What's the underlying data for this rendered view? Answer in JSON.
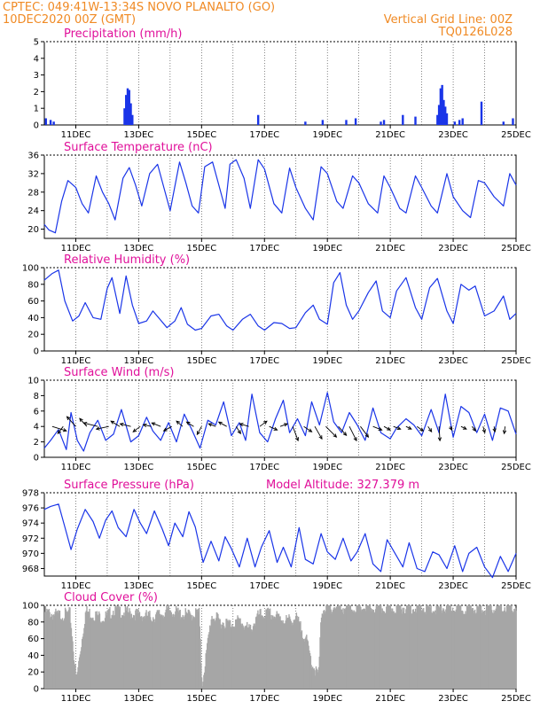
{
  "header": {
    "line1_left": "CPTEC:   049:41W-13:34S   NOVO PLANALTO (GO)",
    "line2_left": "10DEC2020 00Z (GMT)",
    "line2_right": "Vertical Grid Line: 00Z",
    "line3_right": "TQ0126L028"
  },
  "colors": {
    "header": "#f08a24",
    "title": "#e0109a",
    "series": "#1a35e8",
    "bars": "#1a35e8",
    "cloud": "#a6a6a6"
  },
  "xaxis": {
    "start_day": 10,
    "end_day": 25,
    "tick_labels": [
      "11DEC",
      "13DEC",
      "15DEC",
      "17DEC",
      "19DEC",
      "21DEC",
      "23DEC",
      "25DEC"
    ],
    "tick_days": [
      11,
      13,
      15,
      17,
      19,
      21,
      23,
      25
    ]
  },
  "chart_data": [
    {
      "id": "precip",
      "type": "bar",
      "title": "Precipitation (mm/h)",
      "ylim": [
        0,
        5
      ],
      "yticks": [
        "0",
        "1",
        "2",
        "3",
        "4",
        "5"
      ],
      "x": [
        10.05,
        10.2,
        10.3,
        12.55,
        12.6,
        12.65,
        12.7,
        12.75,
        12.8,
        16.8,
        18.3,
        18.85,
        19.6,
        19.9,
        20.7,
        20.8,
        21.4,
        21.8,
        22.5,
        22.55,
        22.6,
        22.65,
        22.7,
        22.75,
        22.8,
        23.05,
        23.2,
        23.3,
        23.9,
        24.6,
        24.9
      ],
      "values": [
        0.4,
        0.3,
        0.2,
        1.0,
        1.8,
        2.2,
        2.1,
        1.3,
        0.6,
        0.6,
        0.2,
        0.3,
        0.3,
        0.4,
        0.2,
        0.3,
        0.6,
        0.5,
        0.6,
        1.2,
        2.2,
        2.4,
        1.5,
        1.1,
        0.7,
        0.2,
        0.3,
        0.4,
        1.4,
        0.2,
        0.4
      ]
    },
    {
      "id": "temp",
      "type": "line",
      "title": "Surface Temperature (nC)",
      "ylim": [
        18,
        36
      ],
      "yticks": [
        "20",
        "24",
        "28",
        "32",
        "36"
      ],
      "x": [
        10.0,
        10.15,
        10.35,
        10.55,
        10.75,
        11.0,
        11.2,
        11.4,
        11.65,
        11.85,
        12.05,
        12.25,
        12.5,
        12.7,
        12.9,
        13.1,
        13.35,
        13.6,
        13.8,
        14.0,
        14.3,
        14.5,
        14.7,
        14.9,
        15.1,
        15.35,
        15.55,
        15.75,
        15.9,
        16.1,
        16.35,
        16.55,
        16.8,
        17.0,
        17.3,
        17.55,
        17.8,
        18.0,
        18.3,
        18.55,
        18.8,
        19.0,
        19.3,
        19.5,
        19.8,
        20.0,
        20.3,
        20.6,
        20.8,
        21.0,
        21.3,
        21.5,
        21.8,
        22.0,
        22.3,
        22.5,
        22.8,
        23.0,
        23.3,
        23.55,
        23.8,
        24.0,
        24.3,
        24.6,
        24.8,
        25.0
      ],
      "values": [
        21,
        19.8,
        19.2,
        26,
        30.5,
        29,
        25.5,
        23.5,
        31.5,
        28,
        25.5,
        22,
        31,
        33.3,
        29.5,
        25,
        32,
        34,
        29,
        24,
        34.5,
        30,
        25,
        23.5,
        33.5,
        34.5,
        29.5,
        24.5,
        34,
        35,
        31,
        24.5,
        35,
        33,
        25.5,
        23.5,
        33.2,
        29,
        24.5,
        22,
        33.5,
        32,
        26,
        24.5,
        31.5,
        30,
        25.5,
        23.5,
        31.5,
        29,
        24.5,
        23.5,
        31.5,
        29,
        25,
        23.5,
        32,
        27,
        24,
        22.5,
        30.5,
        30,
        27,
        25,
        32,
        29.5
      ]
    },
    {
      "id": "rh",
      "type": "line",
      "title": "Relative Humidity (%)",
      "ylim": [
        0,
        100
      ],
      "yticks": [
        "0",
        "20",
        "40",
        "60",
        "80",
        "100"
      ],
      "x": [
        10.0,
        10.25,
        10.45,
        10.65,
        10.9,
        11.1,
        11.3,
        11.55,
        11.8,
        12.0,
        12.15,
        12.4,
        12.6,
        12.8,
        13.0,
        13.25,
        13.45,
        13.65,
        13.9,
        14.15,
        14.35,
        14.55,
        14.8,
        15.0,
        15.3,
        15.55,
        15.8,
        16.0,
        16.3,
        16.55,
        16.8,
        17.0,
        17.3,
        17.55,
        17.8,
        18.0,
        18.3,
        18.55,
        18.75,
        19.0,
        19.2,
        19.4,
        19.6,
        19.8,
        20.0,
        20.3,
        20.55,
        20.75,
        21.0,
        21.2,
        21.5,
        21.8,
        22.0,
        22.25,
        22.5,
        22.8,
        23.0,
        23.25,
        23.5,
        23.7,
        24.0,
        24.3,
        24.6,
        24.8,
        25.0
      ],
      "values": [
        85,
        93,
        97,
        60,
        36,
        42,
        58,
        40,
        38,
        75,
        88,
        45,
        90,
        55,
        33,
        36,
        48,
        39,
        28,
        36,
        52,
        32,
        25,
        27,
        42,
        44,
        30,
        25,
        38,
        44,
        30,
        25,
        34,
        33,
        27,
        28,
        46,
        55,
        38,
        32,
        82,
        94,
        55,
        38,
        48,
        70,
        84,
        48,
        40,
        72,
        88,
        52,
        38,
        76,
        87,
        48,
        33,
        80,
        73,
        78,
        42,
        48,
        66,
        38,
        45
      ]
    },
    {
      "id": "wind",
      "type": "line",
      "title": "Surface Wind (m/s)",
      "ylim": [
        0,
        10
      ],
      "yticks": [
        "0",
        "2",
        "4",
        "6",
        "8",
        "10"
      ],
      "x": [
        10.0,
        10.2,
        10.45,
        10.7,
        10.85,
        11.05,
        11.25,
        11.45,
        11.7,
        11.95,
        12.2,
        12.45,
        12.75,
        13.0,
        13.25,
        13.45,
        13.7,
        13.95,
        14.2,
        14.45,
        14.7,
        14.95,
        15.2,
        15.45,
        15.7,
        15.95,
        16.2,
        16.4,
        16.6,
        16.85,
        17.1,
        17.35,
        17.6,
        17.8,
        18.05,
        18.3,
        18.5,
        18.75,
        19.0,
        19.2,
        19.45,
        19.7,
        19.95,
        20.2,
        20.45,
        20.7,
        21.0,
        21.2,
        21.5,
        21.75,
        22.0,
        22.3,
        22.55,
        22.75,
        23.0,
        23.25,
        23.5,
        23.75,
        24.0,
        24.25,
        24.5,
        24.75,
        25.0
      ],
      "values": [
        1.2,
        2.2,
        3.6,
        1.0,
        5.8,
        2.2,
        0.8,
        3.2,
        4.8,
        2.2,
        3.0,
        6.2,
        2.0,
        2.8,
        5.2,
        3.4,
        2.2,
        4.5,
        2.0,
        5.6,
        3.5,
        1.2,
        4.8,
        4.2,
        7.2,
        2.8,
        4.5,
        2.2,
        8.2,
        3.2,
        2.0,
        5.0,
        7.4,
        3.2,
        5.0,
        2.8,
        7.2,
        4.2,
        8.4,
        4.6,
        3.2,
        5.8,
        4.2,
        2.2,
        6.4,
        3.2,
        2.4,
        3.8,
        5.0,
        4.2,
        2.8,
        6.2,
        3.2,
        8.2,
        2.6,
        6.6,
        5.8,
        3.2,
        5.6,
        2.2,
        6.4,
        6.0,
        3.0
      ]
    },
    {
      "id": "pres",
      "type": "line",
      "title": "Surface Pressure (hPa)",
      "subtitle": "Model Altitude: 327.379 m",
      "ylim": [
        967,
        978
      ],
      "yticks": [
        "968",
        "970",
        "972",
        "974",
        "976",
        "978"
      ],
      "x": [
        10.0,
        10.2,
        10.45,
        10.65,
        10.85,
        11.05,
        11.3,
        11.55,
        11.75,
        11.95,
        12.15,
        12.35,
        12.6,
        12.85,
        13.05,
        13.25,
        13.5,
        13.75,
        13.95,
        14.15,
        14.4,
        14.6,
        14.8,
        15.05,
        15.3,
        15.55,
        15.75,
        15.95,
        16.2,
        16.45,
        16.7,
        16.9,
        17.15,
        17.4,
        17.6,
        17.85,
        18.1,
        18.3,
        18.55,
        18.8,
        19.0,
        19.25,
        19.5,
        19.75,
        19.95,
        20.2,
        20.45,
        20.7,
        20.9,
        21.15,
        21.4,
        21.6,
        21.85,
        22.1,
        22.35,
        22.55,
        22.8,
        23.05,
        23.3,
        23.5,
        23.75,
        24.0,
        24.25,
        24.5,
        24.75,
        25.0
      ],
      "values": [
        975.8,
        976.2,
        976.5,
        973.5,
        970.5,
        973.2,
        975.8,
        974.2,
        972.0,
        974.4,
        975.6,
        973.4,
        972.2,
        975.8,
        974.0,
        972.6,
        975.6,
        973.2,
        971.0,
        974.0,
        972.2,
        975.5,
        973.5,
        968.8,
        971.6,
        969.0,
        972.2,
        970.6,
        968.2,
        972.0,
        968.2,
        970.8,
        973.0,
        968.8,
        970.8,
        968.2,
        973.4,
        969.2,
        968.6,
        972.6,
        970.2,
        969.2,
        972.0,
        969.0,
        970.2,
        972.6,
        968.6,
        967.6,
        971.8,
        970.0,
        968.2,
        971.4,
        968.0,
        967.6,
        970.2,
        969.8,
        968.0,
        971.0,
        967.6,
        970.0,
        970.8,
        968.2,
        966.8,
        969.6,
        967.6,
        970.0
      ]
    },
    {
      "id": "cloud",
      "type": "area",
      "title": "Cloud Cover (%)",
      "ylim": [
        0,
        100
      ],
      "yticks": [
        "0",
        "20",
        "40",
        "60",
        "80",
        "100"
      ],
      "x": [
        10.0,
        10.4,
        10.8,
        11.0,
        11.3,
        11.6,
        11.9,
        12.2,
        12.5,
        12.8,
        13.1,
        13.4,
        13.7,
        14.0,
        14.3,
        14.6,
        14.9,
        15.0,
        15.3,
        15.6,
        15.9,
        16.2,
        16.5,
        16.8,
        17.1,
        17.4,
        17.7,
        18.0,
        18.3,
        18.5,
        18.7,
        18.8,
        19.2,
        19.6,
        20.0,
        20.5,
        21.0,
        21.5,
        22.0,
        22.5,
        23.0,
        23.5,
        24.0,
        24.5,
        25.0
      ],
      "values": [
        92,
        88,
        90,
        10,
        93,
        88,
        85,
        95,
        92,
        90,
        88,
        86,
        90,
        94,
        90,
        88,
        92,
        5,
        88,
        80,
        78,
        82,
        70,
        88,
        90,
        86,
        82,
        84,
        60,
        30,
        15,
        95,
        98,
        97,
        98,
        96,
        97,
        98,
        97,
        96,
        98,
        97,
        96,
        98,
        97
      ]
    }
  ],
  "wind_arrows": [
    {
      "day": 10.25,
      "u": 1.6,
      "v": -0.5
    },
    {
      "day": 10.6,
      "u": -0.6,
      "v": -0.8
    },
    {
      "day": 11.0,
      "u": -1.0,
      "v": 1.1
    },
    {
      "day": 11.35,
      "u": -0.8,
      "v": 0.9
    },
    {
      "day": 11.7,
      "u": -1.6,
      "v": 0.4
    },
    {
      "day": 12.05,
      "u": -1.4,
      "v": -0.3
    },
    {
      "day": 12.4,
      "u": -1.0,
      "v": 0.6
    },
    {
      "day": 12.75,
      "u": -1.2,
      "v": 0.3
    },
    {
      "day": 13.05,
      "u": -0.8,
      "v": -0.6
    },
    {
      "day": 13.4,
      "u": -0.9,
      "v": 0.2
    },
    {
      "day": 13.7,
      "u": -1.0,
      "v": 0.4
    },
    {
      "day": 14.05,
      "u": -0.9,
      "v": -0.5
    },
    {
      "day": 14.4,
      "u": -0.7,
      "v": 0.6
    },
    {
      "day": 14.75,
      "u": -0.8,
      "v": 0.5
    },
    {
      "day": 15.0,
      "u": -0.5,
      "v": -0.9
    },
    {
      "day": 15.45,
      "u": -0.8,
      "v": 0.3
    },
    {
      "day": 15.8,
      "u": -0.9,
      "v": 0.5
    },
    {
      "day": 16.1,
      "u": 0.5,
      "v": -0.8
    },
    {
      "day": 16.5,
      "u": -1.0,
      "v": 0.3
    },
    {
      "day": 16.85,
      "u": 0.8,
      "v": 0.6
    },
    {
      "day": 17.15,
      "u": 0.9,
      "v": -0.4
    },
    {
      "day": 17.5,
      "u": 0.8,
      "v": 0.3
    },
    {
      "day": 17.9,
      "u": 0.6,
      "v": -1.6
    },
    {
      "day": 18.25,
      "u": 0.9,
      "v": -0.6
    },
    {
      "day": 18.6,
      "u": 0.8,
      "v": -1.4
    },
    {
      "day": 18.95,
      "u": 1.2,
      "v": -1.2
    },
    {
      "day": 19.35,
      "u": 0.9,
      "v": -1.0
    },
    {
      "day": 19.7,
      "u": 0.8,
      "v": -1.6
    },
    {
      "day": 20.05,
      "u": 0.9,
      "v": -1.2
    },
    {
      "day": 20.45,
      "u": 1.0,
      "v": -0.4
    },
    {
      "day": 20.8,
      "u": 0.7,
      "v": -0.4
    },
    {
      "day": 21.1,
      "u": 0.8,
      "v": -0.3
    },
    {
      "day": 21.5,
      "u": 0.6,
      "v": -0.3
    },
    {
      "day": 21.85,
      "u": 0.7,
      "v": -0.5
    },
    {
      "day": 22.2,
      "u": 0.4,
      "v": -0.6
    },
    {
      "day": 22.55,
      "u": 0.1,
      "v": -1.6
    },
    {
      "day": 22.9,
      "u": 0.2,
      "v": -0.4
    },
    {
      "day": 23.25,
      "u": 0.6,
      "v": -0.3
    },
    {
      "day": 23.6,
      "u": 0.4,
      "v": -0.5
    },
    {
      "day": 23.95,
      "u": 0.2,
      "v": -0.7
    },
    {
      "day": 24.3,
      "u": 0.1,
      "v": -0.6
    },
    {
      "day": 24.65,
      "u": -0.1,
      "v": -0.8
    }
  ]
}
